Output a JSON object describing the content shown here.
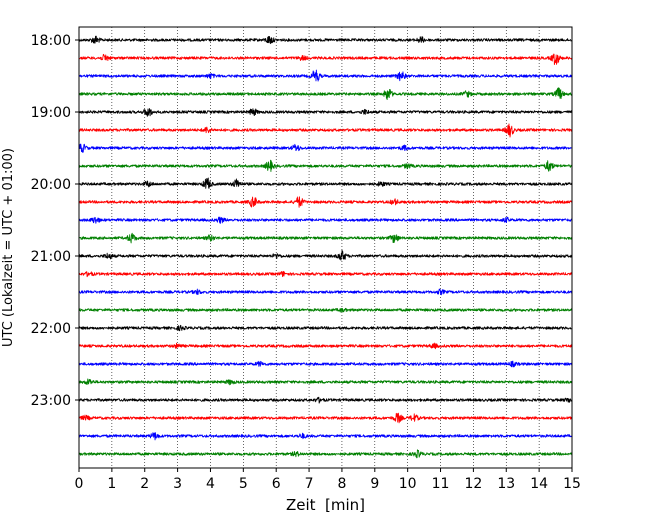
{
  "chart_data": {
    "type": "line",
    "title": "",
    "xlabel": "Zeit  [min]",
    "ylabel": "UTC (Lokalzeit = UTC + 01:00)",
    "xlim": [
      0,
      15
    ],
    "x_ticks": [
      "0",
      "1",
      "2",
      "3",
      "4",
      "5",
      "6",
      "7",
      "8",
      "9",
      "10",
      "11",
      "12",
      "13",
      "14",
      "15"
    ],
    "y_ticks": [
      "18:00",
      "19:00",
      "20:00",
      "21:00",
      "22:00",
      "23:00"
    ],
    "grid": "vertical-dotted",
    "colors": [
      "#000000",
      "#ff0000",
      "#0000ff",
      "#008000"
    ],
    "traces": [
      {
        "start": "18:00",
        "color": "#000000",
        "events": [
          [
            0.5,
            0.6
          ],
          [
            5.8,
            0.6
          ],
          [
            10.4,
            0.4
          ]
        ]
      },
      {
        "start": "18:15",
        "color": "#ff0000",
        "events": [
          [
            0.8,
            0.5
          ],
          [
            14.5,
            1.0
          ],
          [
            6.8,
            0.3
          ]
        ]
      },
      {
        "start": "18:30",
        "color": "#0000ff",
        "events": [
          [
            7.2,
            1.0
          ],
          [
            9.8,
            0.7
          ],
          [
            4.0,
            0.3
          ]
        ]
      },
      {
        "start": "18:45",
        "color": "#008000",
        "events": [
          [
            9.4,
            0.9
          ],
          [
            14.6,
            0.9
          ],
          [
            11.8,
            0.4
          ]
        ]
      },
      {
        "start": "19:00",
        "color": "#000000",
        "events": [
          [
            2.1,
            0.7
          ],
          [
            5.3,
            0.5
          ],
          [
            8.7,
            0.3
          ]
        ]
      },
      {
        "start": "19:15",
        "color": "#ff0000",
        "events": [
          [
            3.9,
            0.4
          ],
          [
            13.1,
            1.0
          ]
        ]
      },
      {
        "start": "19:30",
        "color": "#0000ff",
        "events": [
          [
            0.1,
            0.6
          ],
          [
            6.6,
            0.5
          ],
          [
            9.9,
            0.3
          ]
        ]
      },
      {
        "start": "19:45",
        "color": "#008000",
        "events": [
          [
            5.8,
            0.8
          ],
          [
            14.3,
            0.8
          ],
          [
            10.0,
            0.3
          ]
        ]
      },
      {
        "start": "20:00",
        "color": "#000000",
        "events": [
          [
            3.9,
            0.9
          ],
          [
            4.8,
            0.7
          ],
          [
            2.1,
            0.4
          ],
          [
            9.2,
            0.3
          ]
        ]
      },
      {
        "start": "20:15",
        "color": "#ff0000",
        "events": [
          [
            5.3,
            0.8
          ],
          [
            6.7,
            0.8
          ],
          [
            9.6,
            0.4
          ]
        ]
      },
      {
        "start": "20:30",
        "color": "#0000ff",
        "events": [
          [
            0.5,
            0.5
          ],
          [
            4.3,
            0.4
          ],
          [
            13.0,
            0.3
          ]
        ]
      },
      {
        "start": "20:45",
        "color": "#008000",
        "events": [
          [
            1.6,
            0.7
          ],
          [
            9.6,
            0.7
          ],
          [
            4.0,
            0.4
          ]
        ]
      },
      {
        "start": "21:00",
        "color": "#000000",
        "events": [
          [
            8.0,
            0.8
          ],
          [
            0.9,
            0.4
          ],
          [
            6.0,
            0.3
          ]
        ]
      },
      {
        "start": "21:15",
        "color": "#ff0000",
        "events": [
          [
            0.3,
            0.3
          ],
          [
            6.2,
            0.3
          ]
        ]
      },
      {
        "start": "21:30",
        "color": "#0000ff",
        "events": [
          [
            3.6,
            0.3
          ],
          [
            11.0,
            0.3
          ]
        ]
      },
      {
        "start": "21:45",
        "color": "#008000",
        "events": [
          [
            8.0,
            0.2
          ]
        ]
      },
      {
        "start": "22:00",
        "color": "#000000",
        "events": [
          [
            3.1,
            0.3
          ]
        ]
      },
      {
        "start": "22:15",
        "color": "#ff0000",
        "events": [
          [
            3.0,
            0.3
          ],
          [
            10.8,
            0.3
          ]
        ]
      },
      {
        "start": "22:30",
        "color": "#0000ff",
        "events": [
          [
            5.5,
            0.3
          ],
          [
            13.2,
            0.3
          ]
        ]
      },
      {
        "start": "22:45",
        "color": "#008000",
        "events": [
          [
            0.3,
            0.4
          ],
          [
            4.6,
            0.3
          ]
        ]
      },
      {
        "start": "23:00",
        "color": "#000000",
        "events": [
          [
            7.3,
            0.3
          ],
          [
            14.9,
            0.3
          ]
        ]
      },
      {
        "start": "23:15",
        "color": "#ff0000",
        "events": [
          [
            9.7,
            0.7
          ],
          [
            10.2,
            0.5
          ],
          [
            0.2,
            0.3
          ]
        ]
      },
      {
        "start": "23:30",
        "color": "#0000ff",
        "events": [
          [
            2.3,
            0.5
          ],
          [
            6.8,
            0.3
          ]
        ]
      },
      {
        "start": "23:45",
        "color": "#008000",
        "events": [
          [
            10.3,
            0.5
          ],
          [
            6.6,
            0.3
          ]
        ]
      }
    ]
  }
}
